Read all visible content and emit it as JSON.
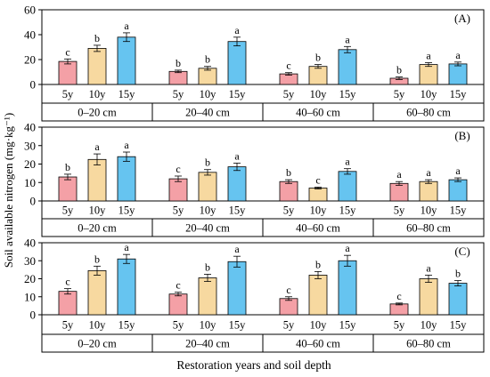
{
  "chart_data": {
    "type": "bar",
    "ylabel": "Soil available nitrogen (mg·kg⁻¹)",
    "xlabel": "Restoration years and soil depth",
    "depths": [
      "0–20 cm",
      "20–40 cm",
      "40–60 cm",
      "60–80 cm"
    ],
    "years": [
      "5y",
      "10y",
      "15y"
    ],
    "colors": {
      "5y": "#f4a0a6",
      "10y": "#f7d9a0",
      "15y": "#66c4f0"
    },
    "panels": [
      {
        "label": "(A)",
        "ylim": [
          0,
          60
        ],
        "yticks": [
          0,
          20,
          40,
          60
        ],
        "groups": [
          {
            "values": [
              18.5,
              29,
              38
            ],
            "errors": [
              2,
              2.5,
              3.5
            ],
            "letters": [
              "c",
              "b",
              "a"
            ]
          },
          {
            "values": [
              10.5,
              13,
              34.5
            ],
            "errors": [
              1,
              1.5,
              3.5
            ],
            "letters": [
              "b",
              "b",
              "a"
            ]
          },
          {
            "values": [
              8.5,
              14.5,
              28
            ],
            "errors": [
              1,
              1.5,
              2.5
            ],
            "letters": [
              "c",
              "b",
              "a"
            ]
          },
          {
            "values": [
              5,
              16,
              16.5
            ],
            "errors": [
              1,
              1.5,
              1.5
            ],
            "letters": [
              "b",
              "a",
              "a"
            ]
          }
        ]
      },
      {
        "label": "(B)",
        "ylim": [
          0,
          40
        ],
        "yticks": [
          0,
          10,
          20,
          30,
          40
        ],
        "groups": [
          {
            "values": [
              13,
              22.5,
              24
            ],
            "errors": [
              1.5,
              3,
              2.5
            ],
            "letters": [
              "b",
              "a",
              "a"
            ]
          },
          {
            "values": [
              12,
              15.5,
              18.5
            ],
            "errors": [
              1.5,
              1.5,
              2
            ],
            "letters": [
              "c",
              "b",
              "a"
            ]
          },
          {
            "values": [
              10.5,
              7,
              16
            ],
            "errors": [
              1,
              0.5,
              1.5
            ],
            "letters": [
              "b",
              "c",
              "a"
            ]
          },
          {
            "values": [
              9.5,
              10.5,
              11.5
            ],
            "errors": [
              1,
              1,
              1
            ],
            "letters": [
              "a",
              "a",
              "a"
            ]
          }
        ]
      },
      {
        "label": "(C)",
        "ylim": [
          0,
          40
        ],
        "yticks": [
          0,
          10,
          20,
          30,
          40
        ],
        "groups": [
          {
            "values": [
              13,
              24.5,
              31
            ],
            "errors": [
              1.5,
              2.5,
              2.5
            ],
            "letters": [
              "c",
              "b",
              "a"
            ]
          },
          {
            "values": [
              11.5,
              20.5,
              29.5
            ],
            "errors": [
              1,
              2,
              3
            ],
            "letters": [
              "c",
              "b",
              "a"
            ]
          },
          {
            "values": [
              9,
              22,
              30
            ],
            "errors": [
              1,
              2,
              3
            ],
            "letters": [
              "c",
              "b",
              "a"
            ]
          },
          {
            "values": [
              6,
              20,
              17.5
            ],
            "errors": [
              0.5,
              2,
              1.5
            ],
            "letters": [
              "c",
              "a",
              "b"
            ]
          }
        ]
      }
    ]
  }
}
